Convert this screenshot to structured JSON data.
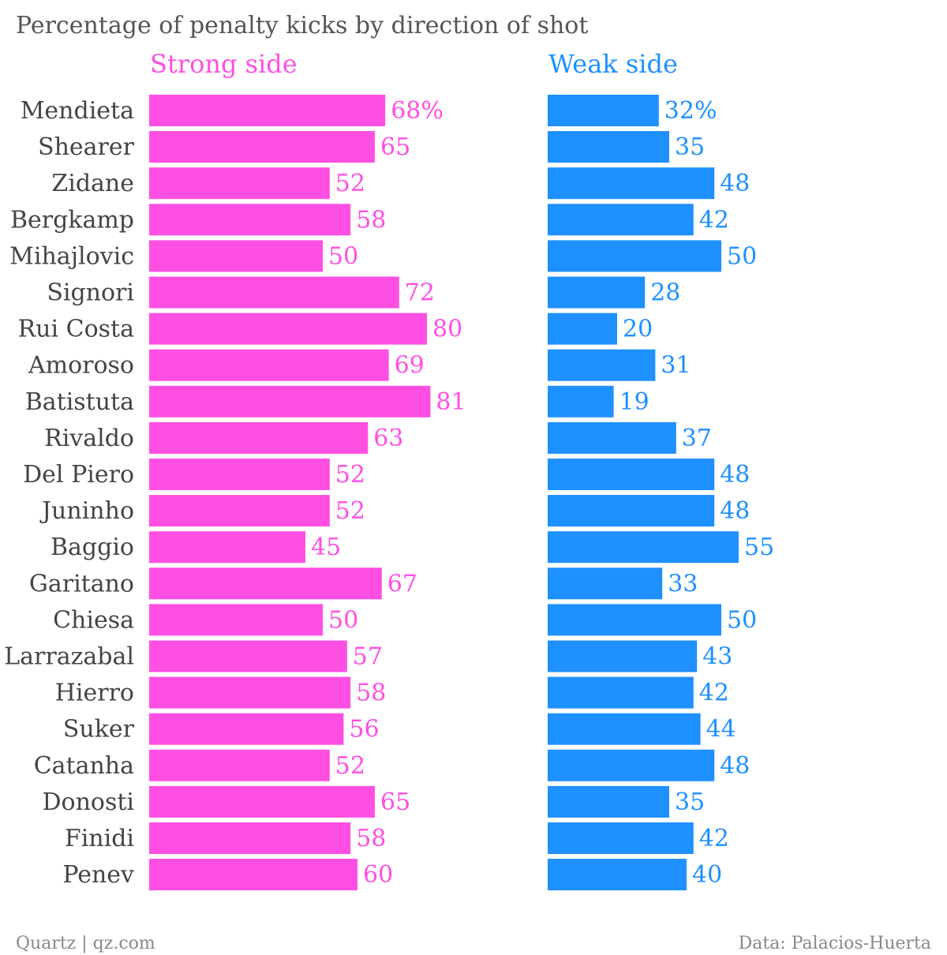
{
  "chart_data": {
    "type": "bar",
    "orientation": "horizontal",
    "title": "Percentage of penalty kicks by direction of shot",
    "categories": [
      "Mendieta",
      "Shearer",
      "Zidane",
      "Bergkamp",
      "Mihajlovic",
      "Signori",
      "Rui Costa",
      "Amoroso",
      "Batistuta",
      "Rivaldo",
      "Del Piero",
      "Juninho",
      "Baggio",
      "Garitano",
      "Chiesa",
      "Larrazabal",
      "Hierro",
      "Suker",
      "Catanha",
      "Donosti",
      "Finidi",
      "Penev"
    ],
    "series": [
      {
        "name": "Strong side",
        "color": "#ff4fe3",
        "values": [
          68,
          65,
          52,
          58,
          50,
          72,
          80,
          69,
          81,
          63,
          52,
          52,
          45,
          67,
          50,
          57,
          58,
          56,
          52,
          65,
          58,
          60
        ],
        "labels": [
          "68%",
          "65",
          "52",
          "58",
          "50",
          "72",
          "80",
          "69",
          "81",
          "63",
          "52",
          "52",
          "45",
          "67",
          "50",
          "57",
          "58",
          "56",
          "52",
          "65",
          "58",
          "60"
        ]
      },
      {
        "name": "Weak side",
        "color": "#1e90ff",
        "values": [
          32,
          35,
          48,
          42,
          50,
          28,
          20,
          31,
          19,
          37,
          48,
          48,
          55,
          33,
          50,
          43,
          42,
          44,
          48,
          35,
          42,
          40
        ],
        "labels": [
          "32%",
          "35",
          "48",
          "42",
          "50",
          "28",
          "20",
          "31",
          "19",
          "37",
          "48",
          "48",
          "55",
          "33",
          "50",
          "43",
          "42",
          "44",
          "48",
          "35",
          "42",
          "40"
        ]
      }
    ],
    "xlim": [
      0,
      100
    ],
    "grid": false,
    "legend": "none"
  },
  "footer": {
    "source_left": "Quartz | qz.com",
    "source_right": "Data: Palacios-Huerta"
  }
}
